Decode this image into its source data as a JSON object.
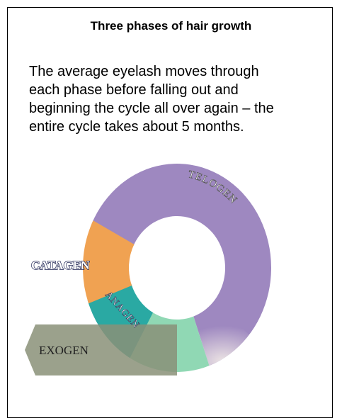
{
  "title": "Three phases of hair growth",
  "body": [
    "The average eyelash moves through",
    "each phase before falling out and",
    "beginning the cycle all over again – the",
    "entire cycle takes about 5 months."
  ],
  "diagram": {
    "telogen": "TELOGEN",
    "catagen": "CATAGEN",
    "anagen": "ANAGEN",
    "exogen": "EXOGEN"
  }
}
